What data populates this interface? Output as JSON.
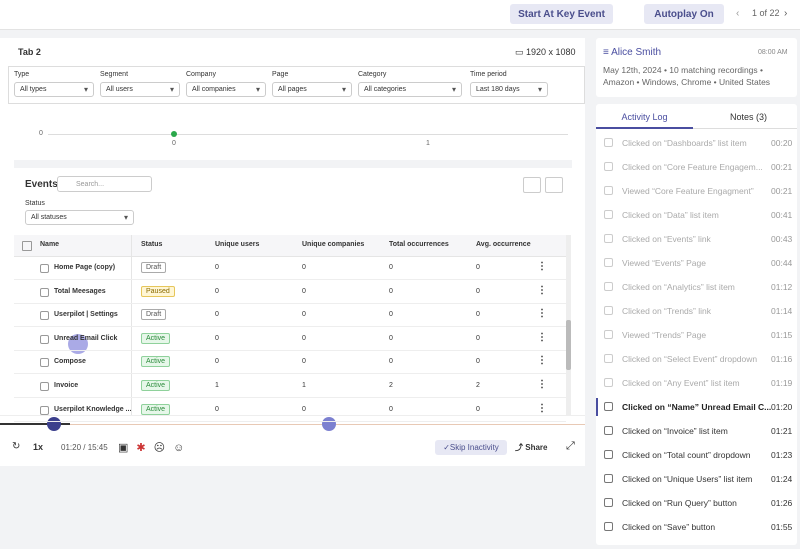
{
  "topbar": {
    "key_event_button": "Start At Key Event",
    "autoplay_button": "Autoplay On",
    "pager": "1 of 22"
  },
  "tab": {
    "title": "Tab 2",
    "resolution": "1920 x 1080"
  },
  "filters": [
    {
      "label": "Type",
      "value": "All types"
    },
    {
      "label": "Segment",
      "value": "All users"
    },
    {
      "label": "Company",
      "value": "All companies"
    },
    {
      "label": "Page",
      "value": "All pages"
    },
    {
      "label": "Category",
      "value": "All categories"
    },
    {
      "label": "Time period",
      "value": "Last 180 days"
    }
  ],
  "mini_chart": {
    "y_label": "0",
    "x_labels": [
      "0",
      "1"
    ]
  },
  "events": {
    "title": "Events",
    "search_placeholder": "Search...",
    "status_label": "Status",
    "status_value": "All statuses",
    "columns": [
      "Name",
      "Status",
      "Unique users",
      "Unique companies",
      "Total occurrences",
      "Avg. occurrence"
    ],
    "rows": [
      [
        "Home Page (copy)",
        "Draft",
        "0",
        "0",
        "0",
        "0"
      ],
      [
        "Total Meesages",
        "Paused",
        "0",
        "0",
        "0",
        "0"
      ],
      [
        "Userpilot | Settings",
        "Draft",
        "0",
        "0",
        "0",
        "0"
      ],
      [
        "Unread Email Click",
        "Active",
        "0",
        "0",
        "0",
        "0"
      ],
      [
        "Compose",
        "Active",
        "0",
        "0",
        "0",
        "0"
      ],
      [
        "Invoice",
        "Active",
        "1",
        "1",
        "2",
        "2"
      ],
      [
        "Userpilot Knowledge ...",
        "Active",
        "0",
        "0",
        "0",
        "0"
      ]
    ]
  },
  "player": {
    "speed": "1x",
    "time": "01:20 / 15:45",
    "skip_button": "Skip Inactivity",
    "share_button": "Share"
  },
  "user": {
    "name": "Alice Smith",
    "time": "08:00 AM",
    "details": "May 12th, 2024 • 10 matching recordings • Amazon • Windows, Chrome • United States"
  },
  "tabs": [
    "Activity Log",
    "Notes (3)"
  ],
  "activity": [
    [
      "Clicked on “Dashboards” list item",
      "00:20"
    ],
    [
      "Clicked on “Core Feature Engagem...",
      "00:21"
    ],
    [
      "Viewed “Core Feature Engagment”",
      "00:21"
    ],
    [
      "Clicked on “Data” list item",
      "00:41"
    ],
    [
      "Clicked on “Events” link",
      "00:43"
    ],
    [
      "Viewed “Events” Page",
      "00:44"
    ],
    [
      "Clicked on “Analytics” list item",
      "01:12"
    ],
    [
      "Clicked on “Trends” link",
      "01:14"
    ],
    [
      "Viewed “Trends” Page",
      "01:15"
    ],
    [
      "Clicked on “Select Event” dropdown",
      "01:16"
    ],
    [
      "Clicked on “Any Event” list item",
      "01:19"
    ],
    [
      "Clicked on “Name”  Unread Email C...",
      "01:20"
    ],
    [
      "Clicked on “Invoice” list item",
      "01:21"
    ],
    [
      "Clicked on “Total count” dropdown",
      "01:23"
    ],
    [
      "Clicked on “Unique Users” list item",
      "01:24"
    ],
    [
      "Clicked on “Run Query” button",
      "01:26"
    ],
    [
      "Clicked on “Save” button",
      "01:55"
    ]
  ]
}
